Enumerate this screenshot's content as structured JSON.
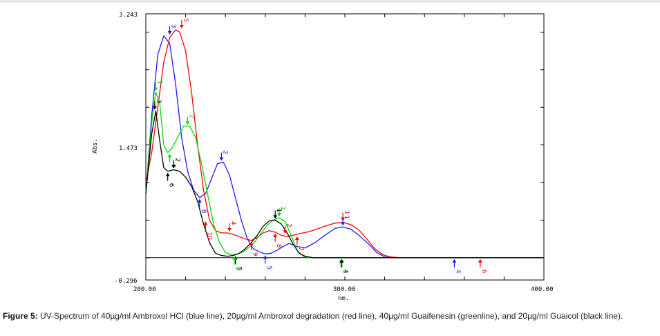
{
  "caption": {
    "label": "Figure 5:",
    "text": "UV-Spectrum of 40µg/ml Ambroxol HCl (blue line), 20µg/ml Ambroxol degradation (red line), 40µg/ml Guaifenesin (greenline), and 20µg/ml Guaicol (black line)."
  },
  "chart_data": {
    "type": "line",
    "xlabel": "nm.",
    "ylabel": "Abs.",
    "xlim": [
      200,
      400
    ],
    "ylim": [
      -0.296,
      3.243
    ],
    "x_tick_labels": [
      "200.00",
      "300.00",
      "400.00"
    ],
    "y_tick_labels": [
      "-0.296",
      "1.473",
      "3.243"
    ],
    "grid": false,
    "legend": "none",
    "colors": {
      "blue": "#1a1aff",
      "red": "#ff0000",
      "green": "#00dd00",
      "black": "#000000"
    },
    "series": [
      {
        "color": "blue",
        "points": [
          [
            200,
            0.85
          ],
          [
            203,
            1.9
          ],
          [
            206,
            2.7
          ],
          [
            209,
            2.95
          ],
          [
            212,
            2.85
          ],
          [
            215,
            2.3
          ],
          [
            218,
            1.6
          ],
          [
            221,
            1.15
          ],
          [
            224,
            0.9
          ],
          [
            227,
            0.8
          ],
          [
            230,
            0.85
          ],
          [
            233,
            1.05
          ],
          [
            236,
            1.25
          ],
          [
            239,
            1.27
          ],
          [
            242,
            1.1
          ],
          [
            245,
            0.8
          ],
          [
            248,
            0.5
          ],
          [
            251,
            0.25
          ],
          [
            254,
            0.12
          ],
          [
            257,
            0.08
          ],
          [
            260,
            0.05
          ],
          [
            263,
            0.06
          ],
          [
            266,
            0.1
          ],
          [
            269,
            0.15
          ],
          [
            272,
            0.19
          ],
          [
            276,
            0.15
          ],
          [
            280,
            0.13
          ],
          [
            285,
            0.2
          ],
          [
            290,
            0.3
          ],
          [
            295,
            0.39
          ],
          [
            299,
            0.41
          ],
          [
            303,
            0.38
          ],
          [
            307,
            0.3
          ],
          [
            312,
            0.18
          ],
          [
            316,
            0.07
          ],
          [
            320,
            0.01
          ],
          [
            325,
            0.0
          ],
          [
            400,
            0.0
          ]
        ]
      },
      {
        "color": "red",
        "points": [
          [
            200,
            1.0
          ],
          [
            203,
            1.4
          ],
          [
            206,
            2.0
          ],
          [
            209,
            2.6
          ],
          [
            212,
            2.93
          ],
          [
            215,
            3.03
          ],
          [
            217,
            3.0
          ],
          [
            220,
            2.75
          ],
          [
            223,
            2.2
          ],
          [
            226,
            1.5
          ],
          [
            229,
            0.9
          ],
          [
            232,
            0.5
          ],
          [
            235,
            0.36
          ],
          [
            238,
            0.33
          ],
          [
            241,
            0.33
          ],
          [
            244,
            0.31
          ],
          [
            247,
            0.28
          ],
          [
            250,
            0.25
          ],
          [
            253,
            0.23
          ],
          [
            256,
            0.27
          ],
          [
            259,
            0.33
          ],
          [
            262,
            0.36
          ],
          [
            265,
            0.34
          ],
          [
            268,
            0.3
          ],
          [
            271,
            0.28
          ],
          [
            274,
            0.3
          ],
          [
            277,
            0.32
          ],
          [
            281,
            0.34
          ],
          [
            285,
            0.37
          ],
          [
            290,
            0.42
          ],
          [
            295,
            0.46
          ],
          [
            299,
            0.47
          ],
          [
            303,
            0.44
          ],
          [
            307,
            0.37
          ],
          [
            311,
            0.25
          ],
          [
            315,
            0.12
          ],
          [
            319,
            0.04
          ],
          [
            323,
            0.01
          ],
          [
            328,
            0.0
          ],
          [
            400,
            0.0
          ]
        ]
      },
      {
        "color": "green",
        "points": [
          [
            200,
            0.85
          ],
          [
            203,
            1.8
          ],
          [
            205,
            2.2
          ],
          [
            207,
            2.05
          ],
          [
            209,
            1.5
          ],
          [
            211,
            1.4
          ],
          [
            213,
            1.45
          ],
          [
            216,
            1.6
          ],
          [
            219,
            1.75
          ],
          [
            222,
            1.75
          ],
          [
            225,
            1.6
          ],
          [
            228,
            1.25
          ],
          [
            231,
            0.85
          ],
          [
            234,
            0.45
          ],
          [
            237,
            0.2
          ],
          [
            240,
            0.07
          ],
          [
            243,
            0.04
          ],
          [
            246,
            0.05
          ],
          [
            249,
            0.08
          ],
          [
            252,
            0.14
          ],
          [
            255,
            0.22
          ],
          [
            258,
            0.33
          ],
          [
            261,
            0.43
          ],
          [
            264,
            0.5
          ],
          [
            267,
            0.53
          ],
          [
            270,
            0.48
          ],
          [
            273,
            0.3
          ],
          [
            276,
            0.1
          ],
          [
            279,
            0.02
          ],
          [
            282,
            0.0
          ],
          [
            400,
            0.0
          ]
        ]
      },
      {
        "color": "black",
        "points": [
          [
            200,
            0.85
          ],
          [
            203,
            1.65
          ],
          [
            205,
            1.95
          ],
          [
            207,
            1.55
          ],
          [
            209,
            1.2
          ],
          [
            211,
            1.15
          ],
          [
            214,
            1.17
          ],
          [
            217,
            1.15
          ],
          [
            220,
            1.07
          ],
          [
            223,
            0.95
          ],
          [
            226,
            0.75
          ],
          [
            229,
            0.45
          ],
          [
            232,
            0.2
          ],
          [
            235,
            0.06
          ],
          [
            238,
            0.03
          ],
          [
            241,
            0.02
          ],
          [
            244,
            0.03
          ],
          [
            247,
            0.06
          ],
          [
            250,
            0.12
          ],
          [
            253,
            0.2
          ],
          [
            256,
            0.3
          ],
          [
            259,
            0.42
          ],
          [
            262,
            0.49
          ],
          [
            265,
            0.5
          ],
          [
            268,
            0.45
          ],
          [
            271,
            0.33
          ],
          [
            274,
            0.18
          ],
          [
            277,
            0.06
          ],
          [
            280,
            0.02
          ],
          [
            284,
            0.0
          ],
          [
            400,
            0.0
          ]
        ]
      }
    ],
    "markers": [
      {
        "label": "3",
        "color": "blue",
        "x": 212,
        "y": 2.95,
        "dir": "down"
      },
      {
        "label": "5",
        "color": "red",
        "x": 218,
        "y": 3.03,
        "dir": "down"
      },
      {
        "label": "1",
        "color": "green",
        "x": 205,
        "y": 2.2,
        "dir": "down"
      },
      {
        "label": "3",
        "color": "black",
        "x": 204.5,
        "y": 1.95,
        "dir": "down"
      },
      {
        "label": "2",
        "color": "green",
        "x": 221,
        "y": 1.75,
        "dir": "down"
      },
      {
        "label": "6",
        "color": "green",
        "x": 212,
        "y": 1.4,
        "dir": "up"
      },
      {
        "label": "2",
        "color": "black",
        "x": 214,
        "y": 1.17,
        "dir": "down"
      },
      {
        "label": "6",
        "color": "black",
        "x": 211,
        "y": 1.15,
        "dir": "up"
      },
      {
        "label": "2",
        "color": "blue",
        "x": 238,
        "y": 1.27,
        "dir": "down"
      },
      {
        "label": "8",
        "color": "blue",
        "x": 227,
        "y": 0.8,
        "dir": "up"
      },
      {
        "label": "4",
        "color": "red",
        "x": 242,
        "y": 0.33,
        "dir": "down"
      },
      {
        "label": "10",
        "color": "red",
        "x": 230,
        "y": 0.5,
        "dir": "up"
      },
      {
        "label": "9",
        "color": "red",
        "x": 253,
        "y": 0.23,
        "dir": "up"
      },
      {
        "label": "1",
        "color": "green",
        "x": 267,
        "y": 0.53,
        "dir": "down"
      },
      {
        "label": "1",
        "color": "black",
        "x": 265,
        "y": 0.5,
        "dir": "down"
      },
      {
        "label": "8",
        "color": "red",
        "x": 265,
        "y": 0.34,
        "dir": "up"
      },
      {
        "label": "2",
        "color": "red",
        "x": 270,
        "y": 0.3,
        "dir": "down"
      },
      {
        "label": "7",
        "color": "red",
        "x": 276,
        "y": 0.3,
        "dir": "up"
      },
      {
        "label": "1",
        "color": "red",
        "x": 299,
        "y": 0.47,
        "dir": "down"
      },
      {
        "label": "1",
        "color": "blue",
        "x": 299,
        "y": 0.41,
        "dir": "down"
      },
      {
        "label": "5",
        "color": "blue",
        "x": 260,
        "y": 0.05,
        "dir": "up"
      },
      {
        "label": "5",
        "color": "black",
        "x": 245,
        "y": 0.04,
        "dir": "up"
      },
      {
        "label": "5",
        "color": "green",
        "x": 244.5,
        "y": 0.04,
        "dir": "up"
      },
      {
        "label": "4",
        "color": "green",
        "x": 298,
        "y": 0.0,
        "dir": "up"
      },
      {
        "label": "4",
        "color": "black",
        "x": 298.5,
        "y": 0.0,
        "dir": "up"
      },
      {
        "label": "4",
        "color": "blue",
        "x": 355,
        "y": 0.0,
        "dir": "up"
      },
      {
        "label": "6",
        "color": "red",
        "x": 368,
        "y": 0.0,
        "dir": "up"
      }
    ]
  }
}
